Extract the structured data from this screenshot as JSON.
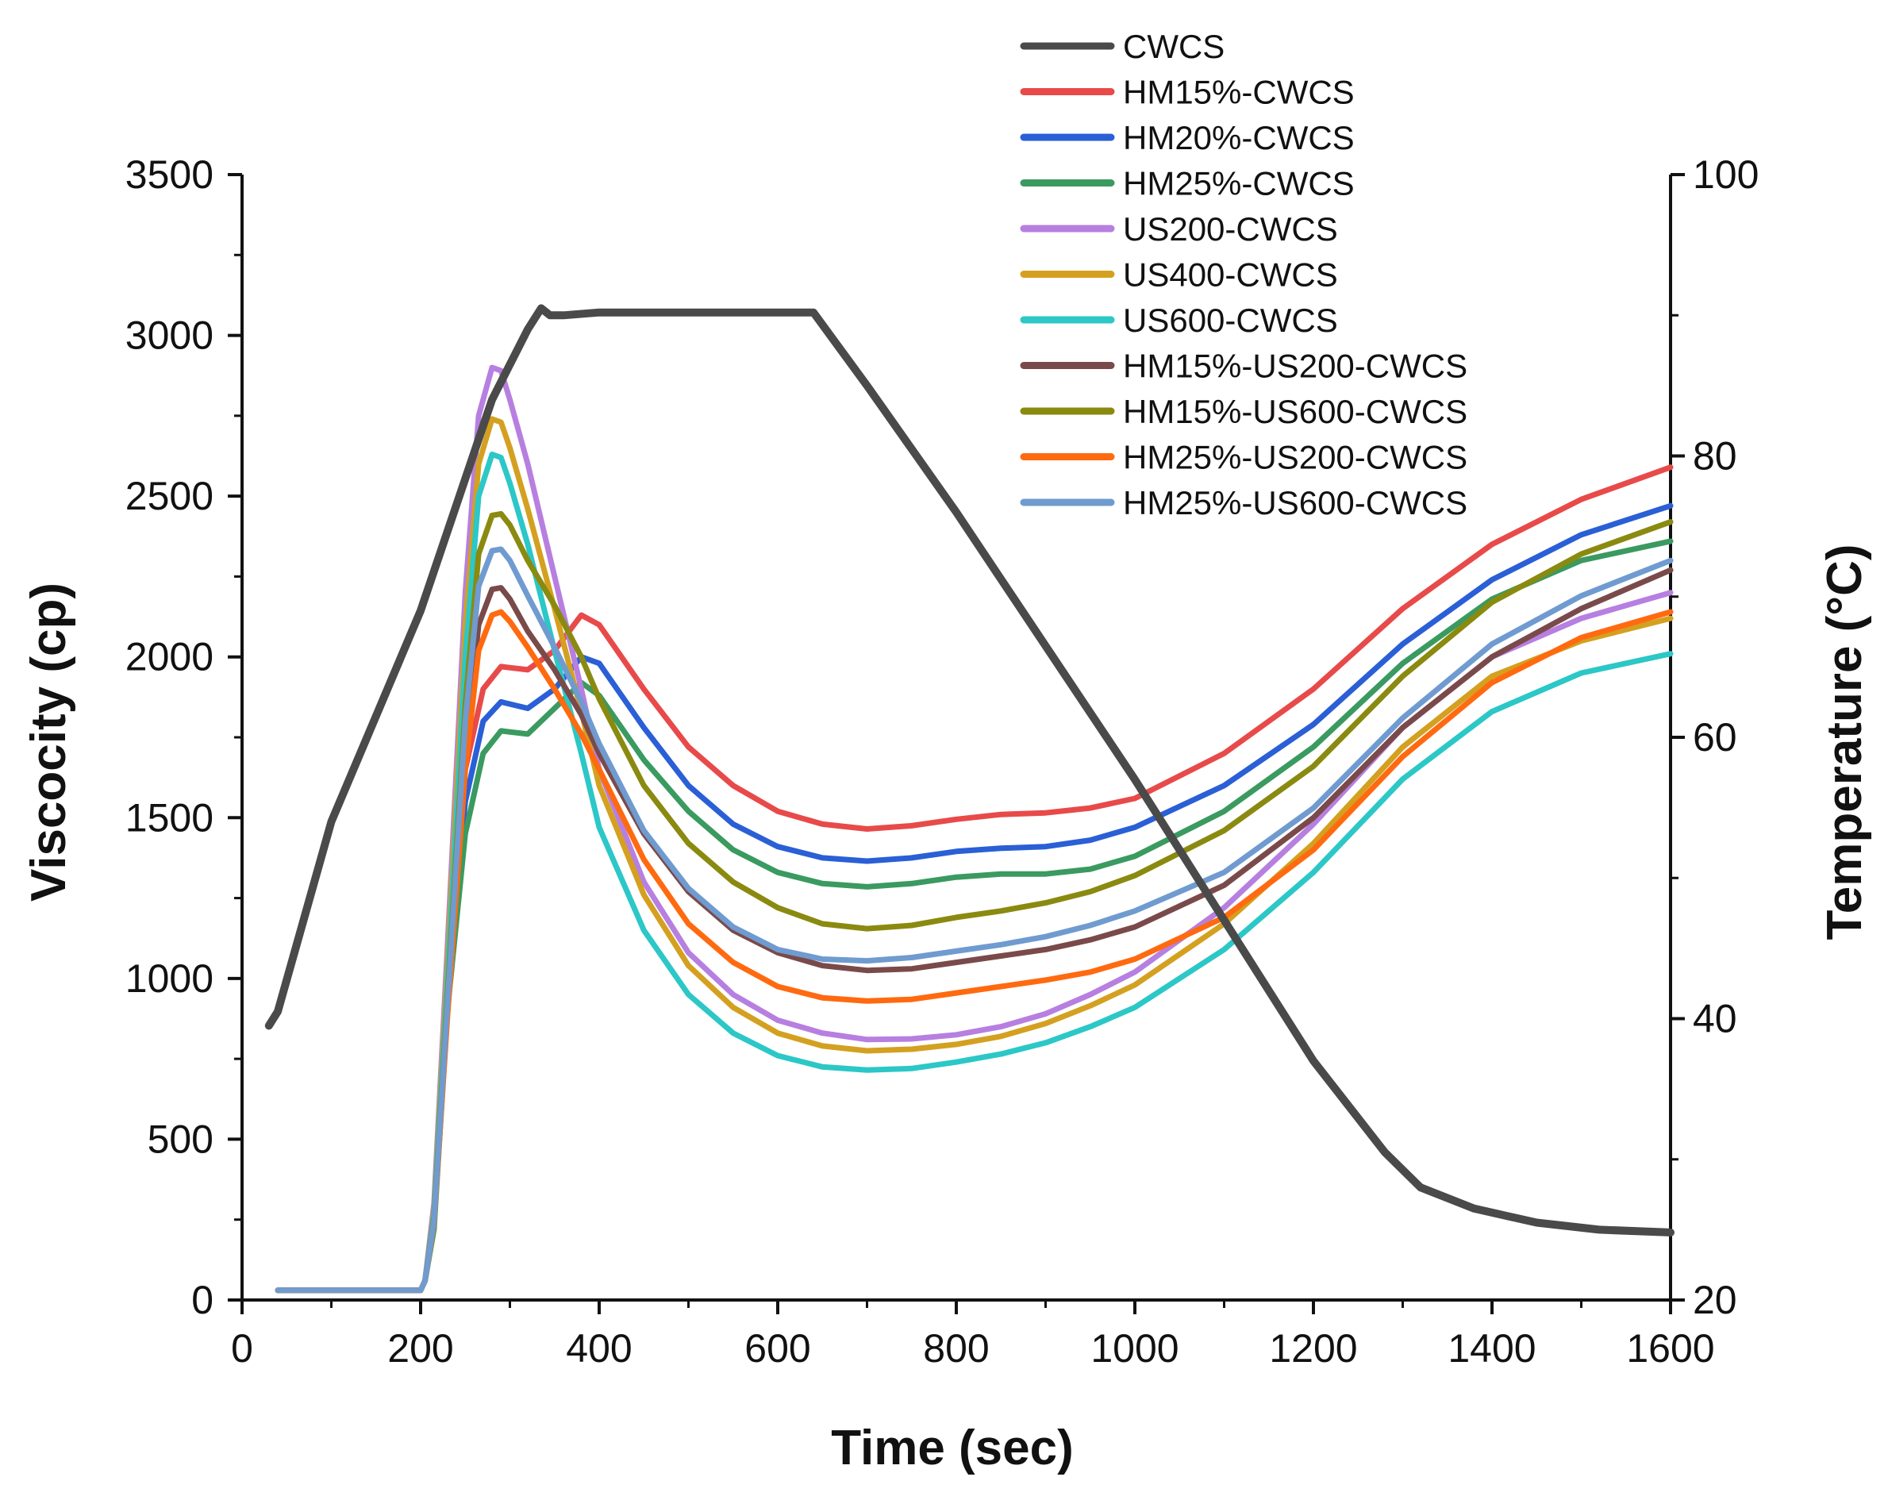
{
  "chart_data": {
    "type": "line",
    "xlabel": "Time (sec)",
    "ylabel": "Viscocity (cp)",
    "y2label": "Temperature (°C)",
    "xlim": [
      0,
      1600
    ],
    "ylim": [
      0,
      3500
    ],
    "y2lim": [
      20,
      100
    ],
    "xticks": [
      0,
      200,
      400,
      600,
      800,
      1000,
      1200,
      1400,
      1600
    ],
    "yticks": [
      0,
      500,
      1000,
      1500,
      2000,
      2500,
      3000,
      3500
    ],
    "y2ticks": [
      20,
      40,
      60,
      80,
      100
    ],
    "legend_position": "top-right",
    "series": [
      {
        "name": "CWCS",
        "color": "#4a4a4a",
        "axis": "y2",
        "x": [
          30,
          40,
          100,
          200,
          280,
          320,
          335,
          345,
          360,
          400,
          640,
          700,
          800,
          900,
          1000,
          1100,
          1200,
          1280,
          1320,
          1380,
          1450,
          1520,
          1600
        ],
        "values": [
          39.5,
          40.5,
          54,
          69,
          84,
          89,
          90.5,
          90,
          90,
          90.2,
          90.2,
          85,
          76,
          66.5,
          57,
          47,
          37,
          30.5,
          28,
          26.5,
          25.5,
          25,
          24.8
        ]
      },
      {
        "name": "HM15%-CWCS",
        "color": "#e84a4a",
        "axis": "y",
        "x": [
          40,
          200,
          205,
          215,
          230,
          250,
          270,
          290,
          320,
          350,
          380,
          400,
          450,
          500,
          550,
          600,
          650,
          700,
          750,
          800,
          850,
          900,
          950,
          1000,
          1100,
          1200,
          1300,
          1400,
          1500,
          1600
        ],
        "values": [
          30,
          30,
          60,
          250,
          1000,
          1650,
          1900,
          1970,
          1960,
          2020,
          2130,
          2100,
          1900,
          1720,
          1600,
          1520,
          1480,
          1465,
          1475,
          1495,
          1510,
          1515,
          1530,
          1560,
          1700,
          1900,
          2150,
          2350,
          2490,
          2590
        ]
      },
      {
        "name": "HM20%-CWCS",
        "color": "#2a5fd6",
        "axis": "y",
        "x": [
          40,
          200,
          205,
          215,
          230,
          250,
          270,
          290,
          320,
          350,
          380,
          400,
          450,
          500,
          550,
          600,
          650,
          700,
          750,
          800,
          850,
          900,
          950,
          1000,
          1100,
          1200,
          1300,
          1400,
          1500,
          1600
        ],
        "values": [
          30,
          30,
          60,
          230,
          950,
          1550,
          1800,
          1860,
          1840,
          1900,
          2000,
          1980,
          1780,
          1600,
          1480,
          1410,
          1375,
          1365,
          1375,
          1395,
          1405,
          1410,
          1430,
          1470,
          1600,
          1790,
          2040,
          2240,
          2380,
          2470
        ]
      },
      {
        "name": "HM25%-CWCS",
        "color": "#3a9a60",
        "axis": "y",
        "x": [
          40,
          200,
          205,
          215,
          230,
          250,
          270,
          290,
          320,
          350,
          380,
          400,
          450,
          500,
          550,
          600,
          650,
          700,
          750,
          800,
          850,
          900,
          950,
          1000,
          1100,
          1200,
          1300,
          1400,
          1500,
          1600
        ],
        "values": [
          30,
          30,
          60,
          220,
          900,
          1450,
          1700,
          1770,
          1760,
          1840,
          1920,
          1880,
          1680,
          1520,
          1400,
          1330,
          1295,
          1285,
          1295,
          1315,
          1325,
          1325,
          1340,
          1380,
          1520,
          1720,
          1980,
          2180,
          2300,
          2360
        ]
      },
      {
        "name": "US200-CWCS",
        "color": "#b77fe0",
        "axis": "y",
        "x": [
          40,
          200,
          205,
          215,
          230,
          250,
          265,
          280,
          290,
          300,
          320,
          350,
          380,
          400,
          450,
          500,
          550,
          600,
          650,
          700,
          750,
          800,
          850,
          900,
          950,
          1000,
          1100,
          1200,
          1300,
          1400,
          1500,
          1600
        ],
        "values": [
          30,
          30,
          60,
          300,
          1100,
          2200,
          2750,
          2900,
          2890,
          2800,
          2600,
          2250,
          1900,
          1650,
          1300,
          1080,
          950,
          870,
          830,
          810,
          812,
          825,
          850,
          890,
          950,
          1020,
          1220,
          1480,
          1780,
          2000,
          2120,
          2200
        ]
      },
      {
        "name": "US400-CWCS",
        "color": "#d4a020",
        "axis": "y",
        "x": [
          40,
          200,
          205,
          215,
          230,
          250,
          265,
          280,
          290,
          300,
          320,
          350,
          380,
          400,
          450,
          500,
          550,
          600,
          650,
          700,
          750,
          800,
          850,
          900,
          950,
          1000,
          1100,
          1200,
          1300,
          1400,
          1500,
          1600
        ],
        "values": [
          30,
          30,
          60,
          280,
          1050,
          2100,
          2600,
          2740,
          2730,
          2650,
          2460,
          2150,
          1830,
          1600,
          1260,
          1040,
          910,
          830,
          790,
          775,
          780,
          795,
          820,
          860,
          915,
          980,
          1170,
          1420,
          1720,
          1940,
          2050,
          2120
        ]
      },
      {
        "name": "US600-CWCS",
        "color": "#2cc7c7",
        "axis": "y",
        "x": [
          40,
          200,
          205,
          215,
          230,
          250,
          265,
          280,
          290,
          300,
          320,
          350,
          380,
          400,
          450,
          500,
          550,
          600,
          650,
          700,
          750,
          800,
          850,
          900,
          950,
          1000,
          1100,
          1200,
          1300,
          1400,
          1500,
          1600
        ],
        "values": [
          30,
          30,
          60,
          270,
          1000,
          2000,
          2500,
          2630,
          2620,
          2540,
          2350,
          2020,
          1700,
          1470,
          1150,
          950,
          830,
          760,
          725,
          715,
          720,
          740,
          765,
          800,
          850,
          910,
          1090,
          1330,
          1620,
          1830,
          1950,
          2010
        ]
      },
      {
        "name": "HM15%-US200-CWCS",
        "color": "#7a4a4a",
        "axis": "y",
        "x": [
          40,
          200,
          205,
          215,
          230,
          250,
          265,
          280,
          290,
          300,
          320,
          350,
          380,
          400,
          450,
          500,
          550,
          600,
          650,
          700,
          750,
          800,
          850,
          900,
          950,
          1000,
          1100,
          1200,
          1300,
          1400,
          1500,
          1600
        ],
        "values": [
          30,
          30,
          60,
          250,
          900,
          1700,
          2100,
          2210,
          2215,
          2180,
          2080,
          1960,
          1820,
          1700,
          1450,
          1270,
          1150,
          1080,
          1040,
          1025,
          1030,
          1050,
          1070,
          1090,
          1120,
          1160,
          1290,
          1500,
          1780,
          2000,
          2150,
          2270
        ]
      },
      {
        "name": "HM15%-US600-CWCS",
        "color": "#8a8a10",
        "axis": "y",
        "x": [
          40,
          200,
          205,
          215,
          230,
          250,
          265,
          280,
          290,
          300,
          320,
          350,
          380,
          400,
          450,
          500,
          550,
          600,
          650,
          700,
          750,
          800,
          850,
          900,
          950,
          1000,
          1100,
          1200,
          1300,
          1400,
          1500,
          1600
        ],
        "values": [
          30,
          30,
          60,
          260,
          950,
          1850,
          2320,
          2440,
          2445,
          2410,
          2300,
          2160,
          2000,
          1870,
          1600,
          1420,
          1300,
          1220,
          1170,
          1155,
          1165,
          1190,
          1210,
          1235,
          1270,
          1320,
          1460,
          1660,
          1940,
          2170,
          2320,
          2420
        ]
      },
      {
        "name": "HM25%-US200-CWCS",
        "color": "#ff6a10",
        "axis": "y",
        "x": [
          40,
          200,
          205,
          215,
          230,
          250,
          265,
          280,
          290,
          300,
          320,
          350,
          380,
          400,
          450,
          500,
          550,
          600,
          650,
          700,
          750,
          800,
          850,
          900,
          950,
          1000,
          1100,
          1200,
          1300,
          1400,
          1500,
          1600
        ],
        "values": [
          30,
          30,
          60,
          240,
          880,
          1650,
          2020,
          2130,
          2140,
          2110,
          2030,
          1900,
          1760,
          1650,
          1370,
          1170,
          1050,
          975,
          940,
          930,
          935,
          955,
          975,
          995,
          1020,
          1060,
          1190,
          1400,
          1690,
          1920,
          2060,
          2140
        ]
      },
      {
        "name": "HM25%-US600-CWCS",
        "color": "#6f9bd0",
        "axis": "y",
        "x": [
          40,
          200,
          205,
          215,
          230,
          250,
          265,
          280,
          290,
          300,
          320,
          350,
          380,
          400,
          450,
          500,
          550,
          600,
          650,
          700,
          750,
          800,
          850,
          900,
          950,
          1000,
          1100,
          1200,
          1300,
          1400,
          1500,
          1600
        ],
        "values": [
          30,
          30,
          60,
          250,
          920,
          1800,
          2220,
          2330,
          2335,
          2300,
          2190,
          2030,
          1860,
          1730,
          1460,
          1280,
          1160,
          1090,
          1060,
          1055,
          1065,
          1085,
          1105,
          1130,
          1165,
          1210,
          1330,
          1530,
          1810,
          2040,
          2190,
          2300
        ]
      }
    ]
  }
}
